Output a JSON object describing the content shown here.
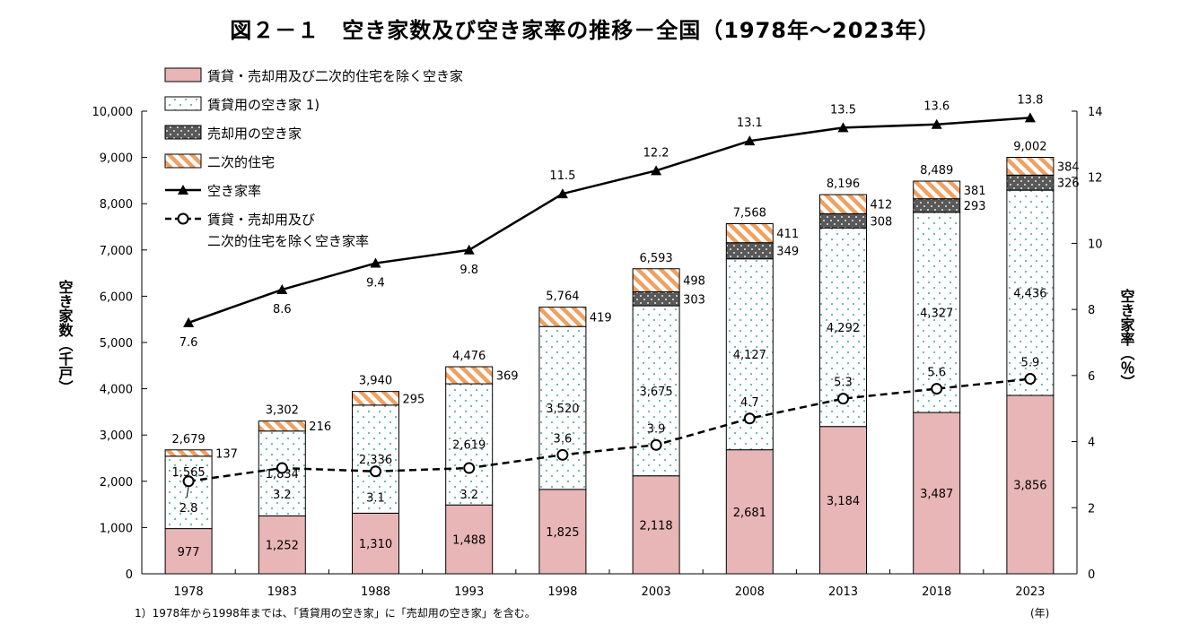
{
  "title": "図２－１　空き家数及び空き家率の推移－全国（1978年～2023年）",
  "y_left_title": "空き家数（千戸）",
  "y_right_title": "空き家率（％）",
  "x_unit": "(年)",
  "footnote": "1）1978年から1998年までは、「賃貸用の空き家」に「売却用の空き家」を含む。",
  "legend": [
    {
      "key": "other",
      "label": "賃貸・売却用及び二次的住宅を除く空き家"
    },
    {
      "key": "rental",
      "label": "賃貸用の空き家 1)"
    },
    {
      "key": "sale",
      "label": "売却用の空き家"
    },
    {
      "key": "secondary",
      "label": "二次的住宅"
    },
    {
      "key": "rate",
      "label": "空き家率"
    },
    {
      "key": "rate_other",
      "label": "賃貸・売却用及び",
      "label2": "二次的住宅を除く空き家率"
    }
  ],
  "colors": {
    "other": "#e8b6b6",
    "dots": "#5fb3b3",
    "sale": "#595959",
    "stripe": "#f0a060",
    "line": "#000000"
  },
  "chart_data": {
    "type": "bar",
    "stacked": true,
    "categories": [
      "1978",
      "1983",
      "1988",
      "1993",
      "1998",
      "2003",
      "2008",
      "2013",
      "2018",
      "2023"
    ],
    "ylim": [
      0,
      10000
    ],
    "y2lim": [
      0,
      14
    ],
    "yticks": [
      "0",
      "1,000",
      "2,000",
      "3,000",
      "4,000",
      "5,000",
      "6,000",
      "7,000",
      "8,000",
      "9,000",
      "10,000"
    ],
    "y2ticks": [
      "0",
      "2",
      "4",
      "6",
      "8",
      "10",
      "12",
      "14"
    ],
    "totals": [
      2679,
      3302,
      3940,
      4476,
      5764,
      6593,
      7568,
      8196,
      8489,
      9002
    ],
    "totals_labels": [
      "2,679",
      "3,302",
      "3,940",
      "4,476",
      "5,764",
      "6,593",
      "7,568",
      "8,196",
      "8,489",
      "9,002"
    ],
    "series": [
      {
        "name": "賃貸・売却用及び二次的住宅を除く空き家",
        "key": "other",
        "values": [
          977,
          1252,
          1310,
          1488,
          1825,
          2118,
          2681,
          3184,
          3487,
          3856
        ],
        "labels": [
          "977",
          "1,252",
          "1,310",
          "1,488",
          "1,825",
          "2,118",
          "2,681",
          "3,184",
          "3,487",
          "3,856"
        ]
      },
      {
        "name": "賃貸用の空き家 1)",
        "key": "rental",
        "values": [
          1565,
          1834,
          2336,
          2619,
          3520,
          3675,
          4127,
          4292,
          4327,
          4436
        ],
        "labels": [
          "1,565",
          "1,834",
          "2,336",
          "2,619",
          "3,520",
          "3,675",
          "4,127",
          "4,292",
          "4,327",
          "4,436"
        ]
      },
      {
        "name": "売却用の空き家",
        "key": "sale",
        "values": [
          0,
          0,
          0,
          0,
          0,
          303,
          349,
          308,
          293,
          326
        ],
        "labels": [
          "",
          "",
          "",
          "",
          "",
          "303",
          "349",
          "308",
          "293",
          "326"
        ]
      },
      {
        "name": "二次的住宅",
        "key": "secondary",
        "values": [
          137,
          216,
          295,
          369,
          419,
          498,
          411,
          412,
          381,
          384
        ],
        "labels": [
          "137",
          "216",
          "295",
          "369",
          "419",
          "498",
          "411",
          "412",
          "381",
          "384"
        ]
      }
    ],
    "lines": [
      {
        "name": "空き家率",
        "key": "rate",
        "values": [
          7.6,
          8.6,
          9.4,
          9.8,
          11.5,
          12.2,
          13.1,
          13.5,
          13.6,
          13.8
        ],
        "labels": [
          "7.6",
          "8.6",
          "9.4",
          "9.8",
          "11.5",
          "12.2",
          "13.1",
          "13.5",
          "13.6",
          "13.8"
        ]
      },
      {
        "name": "賃貸・売却用及び二次的住宅を除く空き家率",
        "key": "rate_other",
        "values": [
          2.8,
          3.2,
          3.1,
          3.2,
          3.6,
          3.9,
          4.7,
          5.3,
          5.6,
          5.9
        ],
        "labels": [
          "2.8",
          "3.2",
          "3.1",
          "3.2",
          "3.6",
          "3.9",
          "4.7",
          "5.3",
          "5.6",
          "5.9"
        ]
      }
    ]
  }
}
